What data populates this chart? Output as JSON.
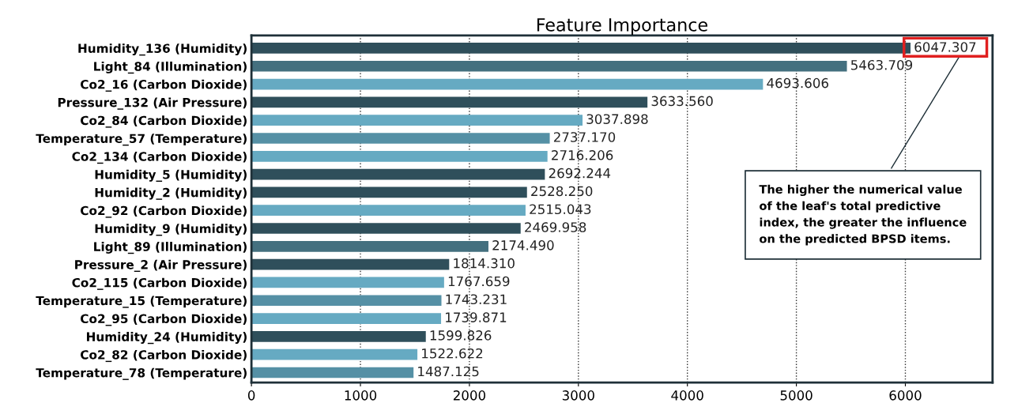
{
  "chart_data": {
    "type": "bar",
    "orientation": "horizontal",
    "title": "Feature Importance",
    "categories": [
      "Humidity_136 (Humidity)",
      "Light_84 (Illumination)",
      "Co2_16 (Carbon Dioxide)",
      "Pressure_132 (Air Pressure)",
      "Co2_84 (Carbon Dioxide)",
      "Temperature_57 (Temperature)",
      "Co2_134 (Carbon Dioxide)",
      "Humidity_5 (Humidity)",
      "Humidity_2 (Humidity)",
      "Co2_92 (Carbon Dioxide)",
      "Humidity_9 (Humidity)",
      "Light_89 (Illumination)",
      "Pressure_2 (Air Pressure)",
      "Co2_115 (Carbon Dioxide)",
      "Temperature_15 (Temperature)",
      "Co2_95 (Carbon Dioxide)",
      "Humidity_24 (Humidity)",
      "Co2_82 (Carbon Dioxide)",
      "Temperature_78 (Temperature)"
    ],
    "values": [
      6047.307,
      5463.709,
      4693.606,
      3633.56,
      3037.898,
      2737.17,
      2716.206,
      2692.244,
      2528.25,
      2515.043,
      2469.958,
      2174.49,
      1814.31,
      1767.659,
      1743.231,
      1739.871,
      1599.826,
      1522.622,
      1487.125
    ],
    "value_labels": [
      "6047.307",
      "5463.709",
      "4693.606",
      "3633.560",
      "3037.898",
      "2737.170",
      "2716.206",
      "2692.244",
      "2528.250",
      "2515.043",
      "2469.958",
      "2174.490",
      "1814.310",
      "1767.659",
      "1743.231",
      "1739.871",
      "1599.826",
      "1522.622",
      "1487.125"
    ],
    "colors": [
      "#2f4f5b",
      "#44707f",
      "#66aac2",
      "#2f4f5b",
      "#66aac2",
      "#5590a5",
      "#66aac2",
      "#2f4f5b",
      "#2f4f5b",
      "#66aac2",
      "#2f4f5b",
      "#44707f",
      "#2f4f5b",
      "#66aac2",
      "#5590a5",
      "#66aac2",
      "#2f4f5b",
      "#66aac2",
      "#5590a5"
    ],
    "xlim": [
      0,
      6800
    ],
    "xticks": [
      0,
      1000,
      2000,
      3000,
      4000,
      5000,
      6000
    ],
    "grid": "x",
    "annotations": [
      "The higher the numerical value\nof the leaf's total predictive\nindex, the greater the influence\non the predicted BPSD items."
    ]
  }
}
